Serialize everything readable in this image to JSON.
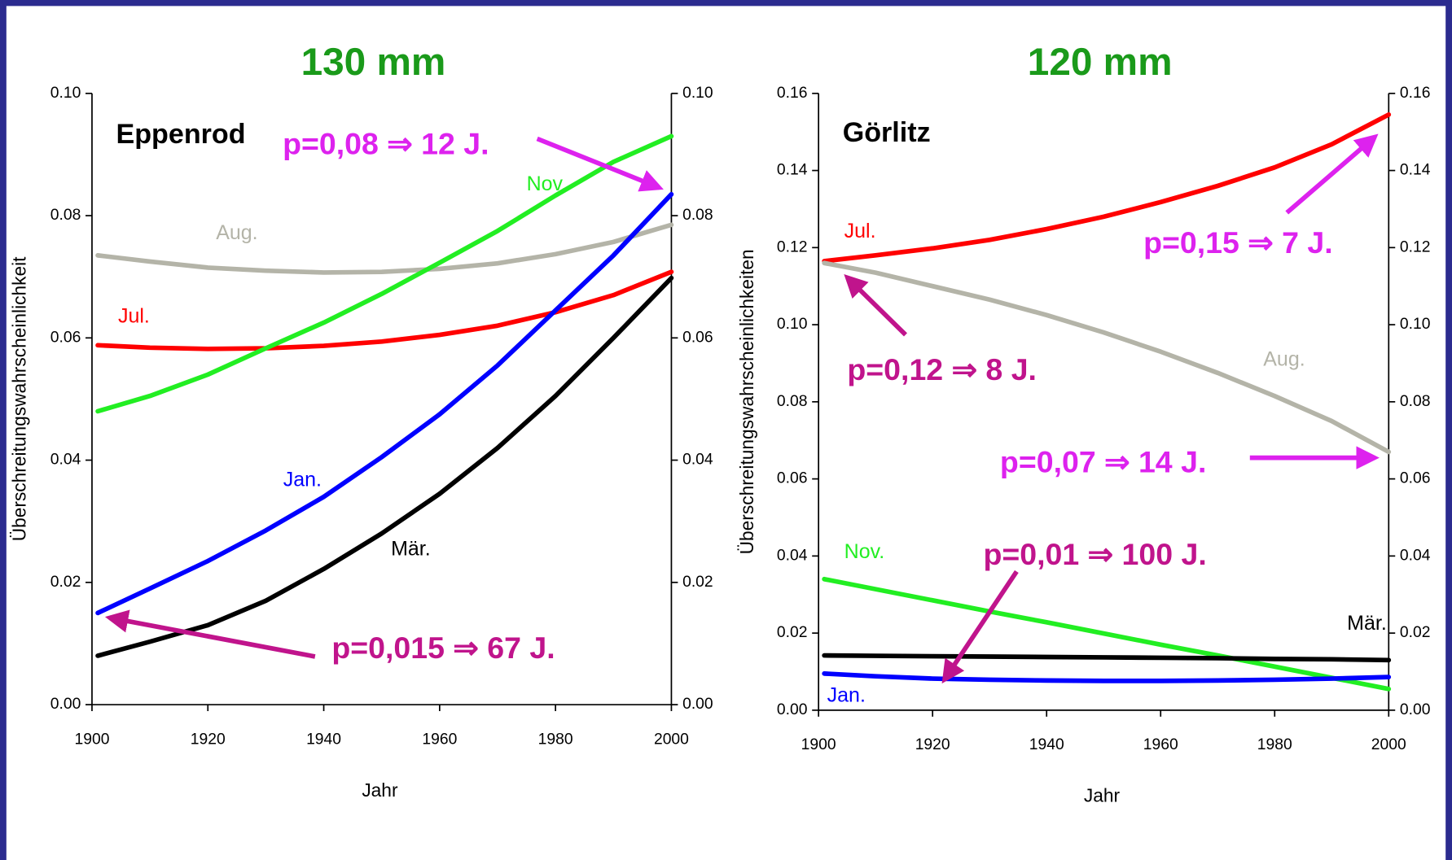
{
  "chart_data": [
    {
      "type": "line",
      "title": "130 mm",
      "subtitle": "Eppenrod",
      "x_label": "Jahr",
      "y_label": "Überschreitungswahrscheinlichkeit",
      "x": [
        1901,
        1910,
        1920,
        1930,
        1940,
        1950,
        1960,
        1970,
        1980,
        1990,
        2000
      ],
      "xlim": [
        1900,
        2000
      ],
      "xticks": [
        1900,
        1920,
        1940,
        1960,
        1980,
        2000
      ],
      "ylim": [
        0,
        0.1
      ],
      "yticks": [
        {
          "value": 0,
          "label": "0.00"
        },
        0.02,
        0.04,
        0.06,
        0.08,
        {
          "value": 0.1,
          "label": "0.10"
        }
      ],
      "y2lim": [
        0,
        0.1
      ],
      "y2ticks": [
        {
          "value": 0,
          "label": "0.00"
        },
        0.02,
        0.04,
        0.06,
        0.08,
        {
          "value": 0.1,
          "label": "0.10"
        }
      ],
      "series": [
        {
          "name": "Aug.",
          "color": "#b4b4a8",
          "values": [
            0.0735,
            0.0725,
            0.0715,
            0.071,
            0.0707,
            0.0708,
            0.0713,
            0.0722,
            0.0737,
            0.0757,
            0.0785
          ]
        },
        {
          "name": "Jul.",
          "color": "#ff0000",
          "values": [
            0.0588,
            0.0584,
            0.0582,
            0.0583,
            0.0587,
            0.0594,
            0.0605,
            0.062,
            0.0642,
            0.067,
            0.0708
          ]
        },
        {
          "name": "Nov.",
          "color": "#22ee22",
          "values": [
            0.048,
            0.0505,
            0.054,
            0.0583,
            0.0625,
            0.0672,
            0.0723,
            0.0775,
            0.0833,
            0.0888,
            0.093
          ]
        },
        {
          "name": "Jan.",
          "color": "#0000ff",
          "values": [
            0.015,
            0.019,
            0.0235,
            0.0285,
            0.034,
            0.0405,
            0.0475,
            0.0555,
            0.0645,
            0.0735,
            0.0835
          ]
        },
        {
          "name": "Mär.",
          "color": "#000000",
          "values": [
            0.008,
            0.0103,
            0.013,
            0.017,
            0.0222,
            0.028,
            0.0345,
            0.042,
            0.0505,
            0.06,
            0.0698
          ]
        }
      ],
      "annotations": [
        {
          "text": "p=0,08 ⇒ 12 J.",
          "color": "#dd22ee"
        },
        {
          "text": "p=0,015 ⇒ 67 J.",
          "color": "#c0148c"
        }
      ]
    },
    {
      "type": "line",
      "title": "120 mm",
      "subtitle": "Görlitz",
      "x_label": "Jahr",
      "y_label": "Überschreitungswahrscheinlichkeiten",
      "x": [
        1901,
        1910,
        1920,
        1930,
        1940,
        1950,
        1960,
        1970,
        1980,
        1990,
        2000
      ],
      "xlim": [
        1900,
        2000
      ],
      "xticks": [
        1900,
        1920,
        1940,
        1960,
        1980,
        2000
      ],
      "ylim": [
        0,
        0.16
      ],
      "yticks": [
        {
          "value": 0,
          "label": "0.00"
        },
        0.02,
        0.04,
        0.06,
        0.08,
        {
          "value": 0.1,
          "label": "0.10"
        },
        0.12,
        0.14,
        0.16
      ],
      "y2lim": [
        0,
        0.16
      ],
      "y2ticks": [
        {
          "value": 0,
          "label": "0.00"
        },
        0.02,
        0.04,
        0.06,
        0.08,
        {
          "value": 0.1,
          "label": "0.10"
        },
        0.12,
        0.14,
        0.16
      ],
      "series": [
        {
          "name": "Jul.",
          "color": "#ff0000",
          "values": [
            0.1165,
            0.118,
            0.1198,
            0.122,
            0.1248,
            0.128,
            0.1318,
            0.136,
            0.1408,
            0.1468,
            0.1545
          ]
        },
        {
          "name": "Aug.",
          "color": "#b4b4a8",
          "values": [
            0.116,
            0.1135,
            0.11,
            0.1065,
            0.1025,
            0.098,
            0.093,
            0.0875,
            0.0815,
            0.075,
            0.067
          ]
        },
        {
          "name": "Nov.",
          "color": "#22ee22",
          "values": [
            0.034,
            0.0314,
            0.0285,
            0.0256,
            0.0228,
            0.0199,
            0.017,
            0.0142,
            0.0113,
            0.0084,
            0.0055
          ]
        },
        {
          "name": "Mär.",
          "color": "#000000",
          "values": [
            0.0142,
            0.0141,
            0.014,
            0.0139,
            0.0138,
            0.0137,
            0.0136,
            0.0135,
            0.0133,
            0.0132,
            0.013
          ]
        },
        {
          "name": "Jan.",
          "color": "#0000ff",
          "values": [
            0.0095,
            0.0088,
            0.0082,
            0.0079,
            0.0077,
            0.0076,
            0.0076,
            0.0077,
            0.0079,
            0.0082,
            0.0086
          ]
        }
      ],
      "annotations": [
        {
          "text": "p=0,15 ⇒ 7 J.",
          "color": "#dd22ee"
        },
        {
          "text": "p=0,12 ⇒ 8 J.",
          "color": "#c0148c"
        },
        {
          "text": "p=0,07 ⇒ 14 J.",
          "color": "#dd22ee"
        },
        {
          "text": "p=0,01 ⇒ 100 J.",
          "color": "#c0148c"
        }
      ]
    }
  ]
}
